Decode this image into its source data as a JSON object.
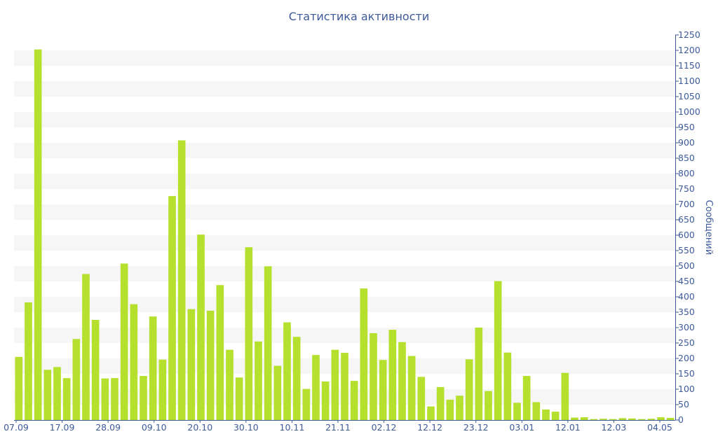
{
  "chart_data": {
    "type": "bar",
    "title": "Статистика активности",
    "ylabel": "Сообщений",
    "ylim": [
      0,
      1250
    ],
    "yticks": [
      0,
      50,
      100,
      150,
      200,
      250,
      300,
      350,
      400,
      450,
      500,
      550,
      600,
      650,
      700,
      750,
      800,
      850,
      900,
      950,
      1000,
      1050,
      1100,
      1150,
      1200,
      1250
    ],
    "y_axis_side": "right",
    "grid": "alternating horizontal bands",
    "xtick_labels": [
      "07.09",
      "17.09",
      "28.09",
      "09.10",
      "20.10",
      "30.10",
      "10.11",
      "21.11",
      "02.12",
      "12.12",
      "23.12",
      "03.01",
      "12.01",
      "12.03",
      "04.05"
    ],
    "bar_color": "#b5e02e",
    "values": [
      205,
      382,
      1203,
      163,
      172,
      136,
      263,
      474,
      325,
      135,
      136,
      508,
      376,
      143,
      336,
      196,
      727,
      908,
      360,
      602,
      355,
      438,
      228,
      138,
      561,
      255,
      499,
      176,
      317,
      270,
      101,
      211,
      125,
      228,
      218,
      127,
      427,
      282,
      195,
      293,
      253,
      208,
      140,
      44,
      107,
      66,
      79,
      197,
      300,
      94,
      451,
      219,
      56,
      143,
      58,
      34,
      27,
      153,
      8,
      9,
      3,
      4,
      3,
      6,
      5,
      3,
      4,
      9,
      7
    ]
  }
}
